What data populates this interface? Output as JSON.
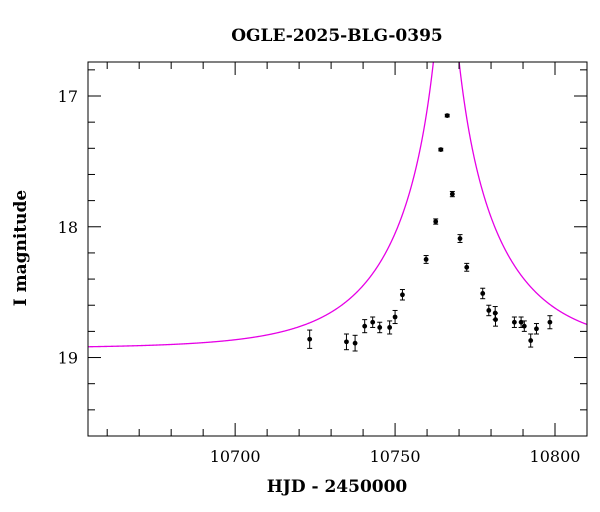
{
  "chart_data": {
    "type": "scatter",
    "title": "OGLE-2025-BLG-0395",
    "xlabel": "HJD - 2450000",
    "ylabel": "I magnitude",
    "xlim": [
      10654,
      10810
    ],
    "ylim": [
      19.6,
      16.74
    ],
    "y_inverted": true,
    "x_ticks": [
      10700,
      10750,
      10800
    ],
    "x_tick_labels": [
      "10700",
      "10750",
      "10800"
    ],
    "y_ticks": [
      17,
      18,
      19
    ],
    "y_tick_labels": [
      "17",
      "18",
      "19"
    ],
    "grid": false,
    "colors": {
      "model": "#e600e6",
      "points": "#000000"
    },
    "series": [
      {
        "kind": "points",
        "x": [
          10723.3,
          10734.8,
          10737.5,
          10740.5,
          10743.0,
          10745.2,
          10748.3,
          10750.0,
          10752.3,
          10759.7,
          10762.7,
          10764.3,
          10766.3,
          10767.9,
          10770.3,
          10772.4,
          10777.4,
          10779.3,
          10781.3,
          10781.4,
          10787.3,
          10789.4,
          10790.4,
          10792.4,
          10794.2,
          10798.4
        ],
        "y": [
          18.86,
          18.88,
          18.89,
          18.76,
          18.73,
          18.77,
          18.77,
          18.69,
          18.52,
          18.25,
          17.96,
          17.41,
          17.15,
          17.75,
          18.09,
          18.31,
          18.51,
          18.64,
          18.66,
          18.71,
          18.73,
          18.73,
          18.76,
          18.87,
          18.78,
          18.73
        ],
        "yerr": [
          0.07,
          0.06,
          0.06,
          0.05,
          0.04,
          0.04,
          0.05,
          0.05,
          0.04,
          0.03,
          0.02,
          0.01,
          0.01,
          0.02,
          0.03,
          0.03,
          0.04,
          0.04,
          0.05,
          0.05,
          0.04,
          0.04,
          0.04,
          0.05,
          0.04,
          0.05
        ]
      },
      {
        "kind": "model",
        "model": "PSPL",
        "baseline_mag": 18.93,
        "t0": 10766.0,
        "u0": 0.0585,
        "tE": 33.4
      }
    ]
  }
}
